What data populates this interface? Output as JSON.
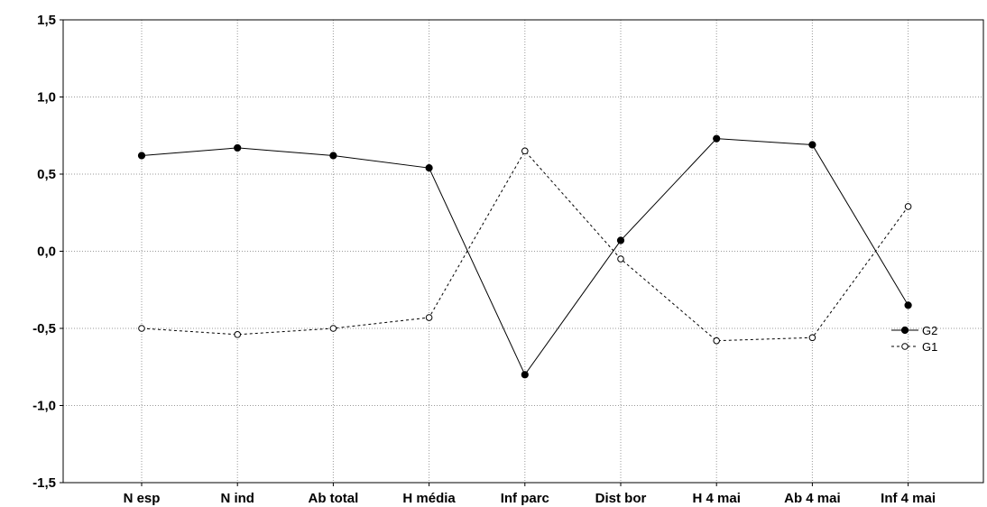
{
  "chart_data": {
    "type": "line",
    "categories": [
      "N esp",
      "N ind",
      "Ab total",
      "H média",
      "Inf parc",
      "Dist bor",
      "H 4 mai",
      "Ab 4 mai",
      "Inf 4 mai"
    ],
    "series": [
      {
        "name": "G2",
        "style": "solid",
        "marker": "filled-circle",
        "color": "#000000",
        "values": [
          0.62,
          0.67,
          0.62,
          0.54,
          -0.8,
          0.07,
          0.73,
          0.69,
          -0.35
        ]
      },
      {
        "name": "G1",
        "style": "dashed",
        "marker": "open-circle",
        "color": "#000000",
        "values": [
          -0.5,
          -0.54,
          -0.5,
          -0.43,
          0.65,
          -0.05,
          -0.58,
          -0.56,
          0.29
        ]
      }
    ],
    "y_ticks": [
      "1,5",
      "1,0",
      "0,5",
      "0,0",
      "-0,5",
      "-1,0",
      "-1,5"
    ],
    "y_tick_values": [
      1.5,
      1.0,
      0.5,
      0.0,
      -0.5,
      -1.0,
      -1.5
    ],
    "ylim": [
      -1.5,
      1.5
    ],
    "xlabel": "",
    "ylabel": "",
    "title": "",
    "grid": true,
    "legend_position": "right"
  }
}
